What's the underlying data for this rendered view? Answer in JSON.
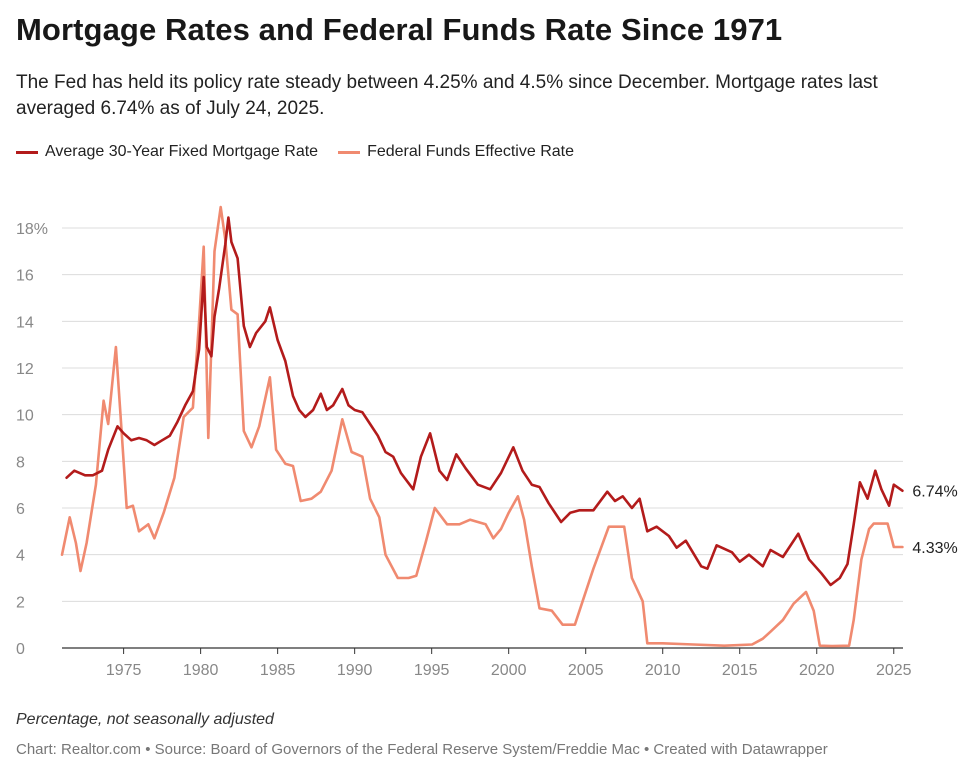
{
  "title": "Mortgage Rates and Federal Funds Rate Since 1971",
  "subtitle": "The Fed has held its policy rate steady between 4.25% and 4.5% since December. Mortgage rates last averaged 6.74% as of July 24, 2025.",
  "note": "Percentage, not seasonally adjusted",
  "credits": "Chart: Realtor.com • Source: Board of Governors of the Federal Reserve System/Freddie Mac • Created with Datawrapper",
  "colors": {
    "mortgage": "#b31b1b",
    "fedfunds": "#f08a70",
    "grid": "#dcdcdc",
    "tick": "#888888"
  },
  "chart_data": {
    "type": "line",
    "title": "Mortgage Rates and Federal Funds Rate Since 1971",
    "xlabel": "",
    "ylabel": "",
    "xlim": [
      1971,
      2025.6
    ],
    "ylim": [
      0,
      18
    ],
    "x_ticks": [
      1975,
      1980,
      1985,
      1990,
      1995,
      2000,
      2005,
      2010,
      2015,
      2020,
      2025
    ],
    "y_ticks": [
      {
        "value": 0,
        "label": "0"
      },
      {
        "value": 2,
        "label": "2"
      },
      {
        "value": 4,
        "label": "4"
      },
      {
        "value": 6,
        "label": "6"
      },
      {
        "value": 8,
        "label": "8"
      },
      {
        "value": 10,
        "label": "10"
      },
      {
        "value": 12,
        "label": "12"
      },
      {
        "value": 14,
        "label": "14"
      },
      {
        "value": 16,
        "label": "16"
      },
      {
        "value": 18,
        "label": "18%"
      }
    ],
    "grid": true,
    "legend_position": "top-left",
    "series": [
      {
        "name": "Average 30-Year Fixed Mortgage Rate",
        "end_label": "6.74%",
        "points": [
          [
            1971.3,
            7.3
          ],
          [
            1971.8,
            7.6
          ],
          [
            1972.5,
            7.4
          ],
          [
            1973.0,
            7.4
          ],
          [
            1973.6,
            7.6
          ],
          [
            1974.0,
            8.5
          ],
          [
            1974.6,
            9.5
          ],
          [
            1975.0,
            9.2
          ],
          [
            1975.5,
            8.9
          ],
          [
            1976.0,
            9.0
          ],
          [
            1976.5,
            8.9
          ],
          [
            1977.0,
            8.7
          ],
          [
            1977.5,
            8.9
          ],
          [
            1978.0,
            9.1
          ],
          [
            1978.5,
            9.7
          ],
          [
            1979.0,
            10.4
          ],
          [
            1979.5,
            11.0
          ],
          [
            1979.9,
            12.8
          ],
          [
            1980.2,
            15.9
          ],
          [
            1980.4,
            12.9
          ],
          [
            1980.7,
            12.5
          ],
          [
            1980.9,
            14.2
          ],
          [
            1981.2,
            15.4
          ],
          [
            1981.6,
            17.3
          ],
          [
            1981.8,
            18.45
          ],
          [
            1982.0,
            17.4
          ],
          [
            1982.4,
            16.7
          ],
          [
            1982.8,
            13.8
          ],
          [
            1983.2,
            12.9
          ],
          [
            1983.6,
            13.5
          ],
          [
            1984.2,
            14.0
          ],
          [
            1984.5,
            14.6
          ],
          [
            1985.0,
            13.2
          ],
          [
            1985.5,
            12.3
          ],
          [
            1986.0,
            10.8
          ],
          [
            1986.4,
            10.2
          ],
          [
            1986.8,
            9.9
          ],
          [
            1987.3,
            10.2
          ],
          [
            1987.8,
            10.9
          ],
          [
            1988.2,
            10.2
          ],
          [
            1988.6,
            10.4
          ],
          [
            1989.2,
            11.1
          ],
          [
            1989.6,
            10.4
          ],
          [
            1990.0,
            10.2
          ],
          [
            1990.5,
            10.1
          ],
          [
            1991.0,
            9.6
          ],
          [
            1991.5,
            9.1
          ],
          [
            1992.0,
            8.4
          ],
          [
            1992.5,
            8.2
          ],
          [
            1993.0,
            7.5
          ],
          [
            1993.8,
            6.8
          ],
          [
            1994.3,
            8.2
          ],
          [
            1994.9,
            9.2
          ],
          [
            1995.5,
            7.6
          ],
          [
            1996.0,
            7.2
          ],
          [
            1996.6,
            8.3
          ],
          [
            1997.2,
            7.7
          ],
          [
            1998.0,
            7.0
          ],
          [
            1998.8,
            6.8
          ],
          [
            1999.5,
            7.5
          ],
          [
            2000.3,
            8.6
          ],
          [
            2000.9,
            7.6
          ],
          [
            2001.5,
            7.0
          ],
          [
            2002.0,
            6.9
          ],
          [
            2002.6,
            6.2
          ],
          [
            2003.4,
            5.4
          ],
          [
            2004.0,
            5.8
          ],
          [
            2004.6,
            5.9
          ],
          [
            2005.5,
            5.9
          ],
          [
            2006.4,
            6.7
          ],
          [
            2006.9,
            6.3
          ],
          [
            2007.4,
            6.5
          ],
          [
            2008.0,
            6.0
          ],
          [
            2008.5,
            6.4
          ],
          [
            2009.0,
            5.0
          ],
          [
            2009.6,
            5.2
          ],
          [
            2010.4,
            4.8
          ],
          [
            2010.9,
            4.3
          ],
          [
            2011.5,
            4.6
          ],
          [
            2012.5,
            3.5
          ],
          [
            2012.9,
            3.4
          ],
          [
            2013.5,
            4.4
          ],
          [
            2014.5,
            4.1
          ],
          [
            2015.0,
            3.7
          ],
          [
            2015.6,
            4.0
          ],
          [
            2016.5,
            3.5
          ],
          [
            2017.0,
            4.2
          ],
          [
            2017.8,
            3.9
          ],
          [
            2018.8,
            4.9
          ],
          [
            2019.5,
            3.8
          ],
          [
            2020.3,
            3.2
          ],
          [
            2020.9,
            2.7
          ],
          [
            2021.5,
            3.0
          ],
          [
            2022.0,
            3.6
          ],
          [
            2022.4,
            5.3
          ],
          [
            2022.8,
            7.1
          ],
          [
            2023.3,
            6.4
          ],
          [
            2023.8,
            7.6
          ],
          [
            2024.2,
            6.8
          ],
          [
            2024.7,
            6.1
          ],
          [
            2025.0,
            7.0
          ],
          [
            2025.56,
            6.74
          ]
        ]
      },
      {
        "name": "Federal Funds Effective Rate",
        "end_label": "4.33%",
        "points": [
          [
            1971.0,
            4.0
          ],
          [
            1971.5,
            5.6
          ],
          [
            1971.9,
            4.5
          ],
          [
            1972.2,
            3.3
          ],
          [
            1972.6,
            4.5
          ],
          [
            1973.2,
            7.0
          ],
          [
            1973.7,
            10.6
          ],
          [
            1974.0,
            9.6
          ],
          [
            1974.5,
            12.9
          ],
          [
            1974.8,
            10.0
          ],
          [
            1975.2,
            6.0
          ],
          [
            1975.6,
            6.1
          ],
          [
            1976.0,
            5.0
          ],
          [
            1976.6,
            5.3
          ],
          [
            1977.0,
            4.7
          ],
          [
            1977.6,
            5.8
          ],
          [
            1978.3,
            7.3
          ],
          [
            1978.9,
            9.9
          ],
          [
            1979.5,
            10.3
          ],
          [
            1979.9,
            14.0
          ],
          [
            1980.2,
            17.2
          ],
          [
            1980.5,
            9.0
          ],
          [
            1980.9,
            17.0
          ],
          [
            1981.3,
            18.9
          ],
          [
            1981.6,
            17.5
          ],
          [
            1982.0,
            14.5
          ],
          [
            1982.4,
            14.3
          ],
          [
            1982.8,
            9.3
          ],
          [
            1983.3,
            8.6
          ],
          [
            1983.8,
            9.5
          ],
          [
            1984.5,
            11.6
          ],
          [
            1984.9,
            8.5
          ],
          [
            1985.5,
            7.9
          ],
          [
            1986.0,
            7.8
          ],
          [
            1986.5,
            6.3
          ],
          [
            1987.2,
            6.4
          ],
          [
            1987.8,
            6.7
          ],
          [
            1988.5,
            7.6
          ],
          [
            1989.2,
            9.8
          ],
          [
            1989.8,
            8.4
          ],
          [
            1990.5,
            8.2
          ],
          [
            1991.0,
            6.4
          ],
          [
            1991.6,
            5.6
          ],
          [
            1992.0,
            4.0
          ],
          [
            1992.8,
            3.0
          ],
          [
            1993.5,
            3.0
          ],
          [
            1994.0,
            3.1
          ],
          [
            1994.6,
            4.5
          ],
          [
            1995.2,
            6.0
          ],
          [
            1996.0,
            5.3
          ],
          [
            1996.8,
            5.3
          ],
          [
            1997.5,
            5.5
          ],
          [
            1998.5,
            5.3
          ],
          [
            1999.0,
            4.7
          ],
          [
            1999.5,
            5.1
          ],
          [
            2000.0,
            5.8
          ],
          [
            2000.6,
            6.5
          ],
          [
            2001.0,
            5.5
          ],
          [
            2001.5,
            3.5
          ],
          [
            2002.0,
            1.7
          ],
          [
            2002.8,
            1.6
          ],
          [
            2003.5,
            1.0
          ],
          [
            2004.3,
            1.0
          ],
          [
            2004.8,
            2.0
          ],
          [
            2005.5,
            3.4
          ],
          [
            2006.5,
            5.2
          ],
          [
            2007.5,
            5.2
          ],
          [
            2008.0,
            3.0
          ],
          [
            2008.7,
            2.0
          ],
          [
            2009.0,
            0.2
          ],
          [
            2010.0,
            0.2
          ],
          [
            2012.0,
            0.15
          ],
          [
            2014.0,
            0.1
          ],
          [
            2015.8,
            0.15
          ],
          [
            2016.5,
            0.4
          ],
          [
            2017.0,
            0.7
          ],
          [
            2017.8,
            1.2
          ],
          [
            2018.5,
            1.9
          ],
          [
            2019.3,
            2.4
          ],
          [
            2019.8,
            1.6
          ],
          [
            2020.2,
            0.1
          ],
          [
            2021.0,
            0.08
          ],
          [
            2022.1,
            0.1
          ],
          [
            2022.4,
            1.2
          ],
          [
            2022.9,
            3.8
          ],
          [
            2023.4,
            5.1
          ],
          [
            2023.7,
            5.33
          ],
          [
            2024.6,
            5.33
          ],
          [
            2024.9,
            4.6
          ],
          [
            2025.0,
            4.33
          ],
          [
            2025.56,
            4.33
          ]
        ]
      }
    ]
  }
}
